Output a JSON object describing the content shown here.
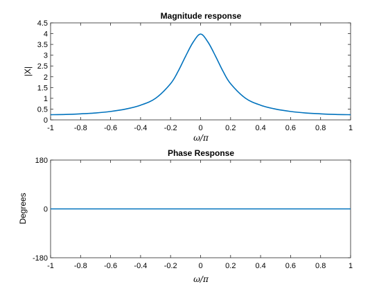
{
  "chart_data": [
    {
      "type": "line",
      "title": "Magnitude response",
      "xlabel": "ω/π",
      "ylabel": "|X|",
      "xlim": [
        -1,
        1
      ],
      "ylim": [
        0,
        4.5
      ],
      "xticks": [
        "-1",
        "-0.8",
        "-0.6",
        "-0.4",
        "-0.2",
        "0",
        "0.2",
        "0.4",
        "0.6",
        "0.8",
        "1"
      ],
      "yticks": [
        "0",
        "0.5",
        "1",
        "1.5",
        "2",
        "2.5",
        "3",
        "3.5",
        "4",
        "4.5"
      ],
      "grid": false,
      "color": "#0072bd",
      "series": [
        {
          "x": [
            -1,
            -0.9,
            -0.8,
            -0.7,
            -0.6,
            -0.5,
            -0.4,
            -0.3,
            -0.2,
            -0.15,
            -0.1,
            -0.05,
            0,
            0.05,
            0.1,
            0.15,
            0.2,
            0.3,
            0.4,
            0.5,
            0.6,
            0.7,
            0.8,
            0.9,
            1
          ],
          "values": [
            0.24,
            0.25,
            0.28,
            0.32,
            0.39,
            0.5,
            0.68,
            1.0,
            1.68,
            2.25,
            2.95,
            3.6,
            3.98,
            3.6,
            2.95,
            2.25,
            1.68,
            1.0,
            0.68,
            0.5,
            0.39,
            0.32,
            0.28,
            0.25,
            0.24
          ]
        }
      ]
    },
    {
      "type": "line",
      "title": "Phase Response",
      "xlabel": "ω/π",
      "ylabel": "Degrees",
      "xlim": [
        -1,
        1
      ],
      "ylim": [
        -180,
        180
      ],
      "xticks": [
        "-1",
        "-0.8",
        "-0.6",
        "-0.4",
        "-0.2",
        "0",
        "0.2",
        "0.4",
        "0.6",
        "0.8",
        "1"
      ],
      "yticks": [
        "-180",
        "0",
        "180"
      ],
      "grid": false,
      "color": "#0072bd",
      "series": [
        {
          "x": [
            -1,
            1
          ],
          "values": [
            0,
            0
          ]
        }
      ]
    }
  ]
}
